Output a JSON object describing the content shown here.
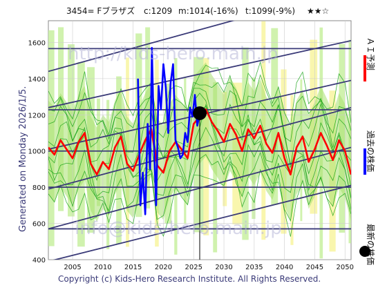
{
  "header": {
    "title": "3454= Fブラザズ",
    "current": "c:1209",
    "mean": "m:1014(-16%)",
    "trend": "t:1099(-9%)",
    "stars": "★★☆"
  },
  "side_left": "Generated on Monday 2026/1/5.",
  "footer": "Copyright (c) Kids-Hero Research Institute. All Rights Reserved.",
  "watermarks": {
    "url": "http://kids-hero.main.jp",
    "email": "info@kids-hero.main.jp"
  },
  "legend": [
    {
      "label": "ＡＩ予測",
      "color": "#ff0000",
      "marker": "line"
    },
    {
      "label": "過去の株価",
      "color": "#0000ff",
      "marker": "line"
    },
    {
      "label": "最新の株価",
      "color": "#000000",
      "marker": "dot"
    }
  ],
  "colors": {
    "ai": "#ff0000",
    "past": "#0000ff",
    "band_outer": "#c8f0a0",
    "band_mid": "#a8e070",
    "yellow": "#f8f4a0",
    "hline": "#3a3a78",
    "green": "#10a010"
  },
  "chart_data": {
    "type": "line",
    "xlim": [
      2001,
      2051
    ],
    "ylim": [
      400,
      1720
    ],
    "x_ticks": [
      2005,
      2010,
      2015,
      2020,
      2025,
      2030,
      2035,
      2040,
      2045,
      2050
    ],
    "y_ticks": [
      400,
      600,
      800,
      1000,
      1200,
      1400,
      1600
    ],
    "grid": true,
    "latest": {
      "x": 2026.0,
      "y": 1209
    },
    "reference_lines": [
      570,
      800,
      1000,
      1228,
      1566
    ],
    "trend_channels": [
      {
        "x0": 2001,
        "y0": 390,
        "x1": 2051,
        "y1": 810
      },
      {
        "x0": 2001,
        "y0": 570,
        "x1": 2051,
        "y1": 1020
      },
      {
        "x0": 2001,
        "y0": 790,
        "x1": 2051,
        "y1": 1240
      },
      {
        "x0": 2001,
        "y0": 1010,
        "x1": 2051,
        "y1": 1390
      },
      {
        "x0": 2001,
        "y0": 1240,
        "x1": 2051,
        "y1": 1610
      },
      {
        "x0": 2001,
        "y0": 1440,
        "x1": 2051,
        "y1": 1900
      }
    ],
    "series": [
      {
        "name": "ＡＩ予測",
        "x": [
          2001,
          2002,
          2003,
          2004,
          2005,
          2006,
          2007,
          2008,
          2009,
          2010,
          2011,
          2012,
          2013,
          2014,
          2015,
          2016,
          2017,
          2018,
          2019,
          2020,
          2021,
          2022,
          2023,
          2024,
          2025,
          2026,
          2027,
          2028,
          2029,
          2030,
          2031,
          2032,
          2033,
          2034,
          2035,
          2036,
          2037,
          2038,
          2039,
          2040,
          2041,
          2042,
          2043,
          2044,
          2045,
          2046,
          2047,
          2048,
          2049,
          2050,
          2051
        ],
        "values": [
          1020,
          980,
          1060,
          1010,
          960,
          1050,
          1100,
          930,
          870,
          940,
          900,
          1020,
          1080,
          930,
          890,
          980,
          1060,
          1120,
          920,
          880,
          1000,
          1050,
          1010,
          960,
          1150,
          1190,
          1230,
          1160,
          1110,
          1050,
          1150,
          1090,
          1000,
          1120,
          1070,
          1140,
          1040,
          990,
          1100,
          960,
          870,
          1020,
          1080,
          940,
          1010,
          1100,
          1030,
          950,
          1060,
          1000,
          870
        ]
      },
      {
        "name": "過去の株価",
        "x": [
          2015.8,
          2016.2,
          2016.6,
          2017.0,
          2017.4,
          2017.8,
          2018.1,
          2018.5,
          2018.8,
          2019.2,
          2019.6,
          2020.0,
          2020.4,
          2020.8,
          2021.2,
          2021.6,
          2022.0,
          2022.4,
          2022.8,
          2023.2,
          2023.6,
          2024.0,
          2024.4,
          2024.8,
          2025.2,
          2025.6,
          2026.0
        ],
        "values": [
          1400,
          700,
          880,
          650,
          1150,
          900,
          1570,
          980,
          700,
          1360,
          1230,
          1480,
          1350,
          1100,
          1380,
          1480,
          1060,
          1020,
          960,
          980,
          1100,
          1050,
          1240,
          1190,
          1310,
          1140,
          1209
        ]
      }
    ]
  }
}
